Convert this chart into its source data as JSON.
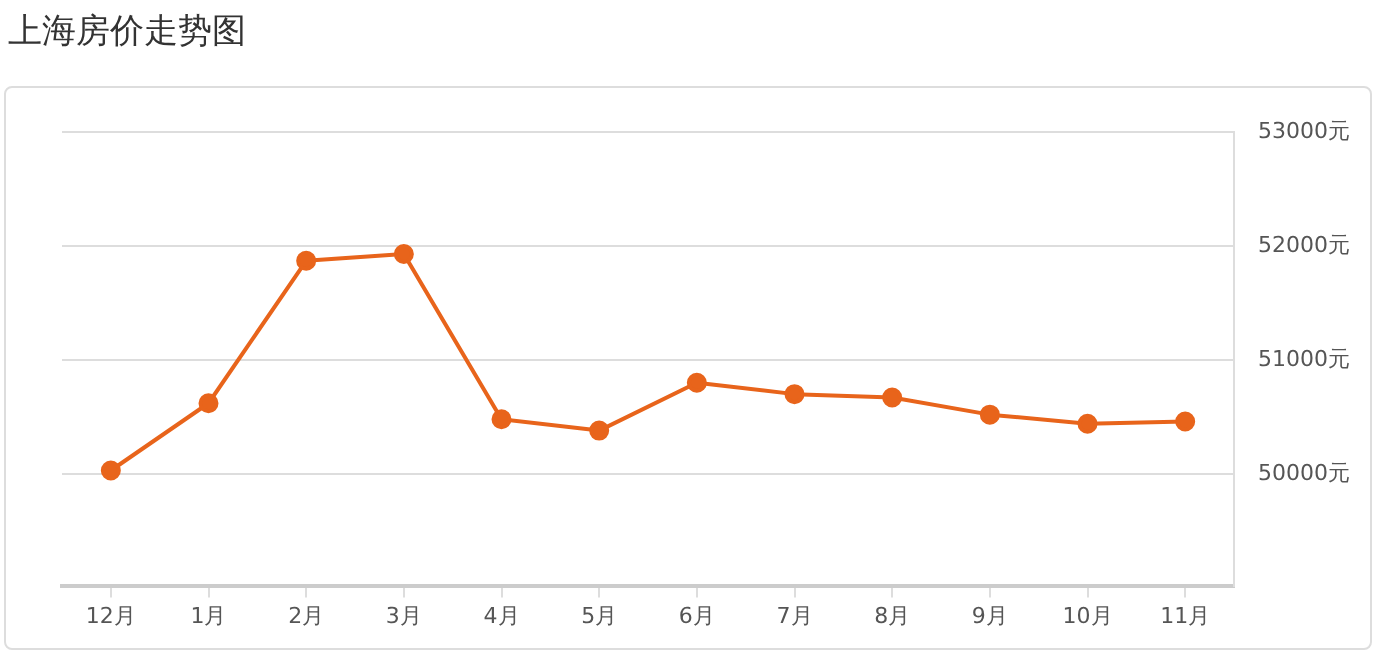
{
  "chart_data": {
    "type": "line",
    "title": "上海房价走势图",
    "categories": [
      "12月",
      "1月",
      "2月",
      "3月",
      "4月",
      "5月",
      "6月",
      "7月",
      "8月",
      "9月",
      "10月",
      "11月"
    ],
    "series": [
      {
        "color": "#e8641b",
        "values": [
          50030,
          50620,
          51870,
          51930,
          50480,
          50380,
          50800,
          50700,
          50670,
          50520,
          50440,
          50460
        ]
      }
    ],
    "ylim": [
      49020,
      53000
    ],
    "yticks": [
      {
        "value": 50000,
        "label": "50000元"
      },
      {
        "value": 51000,
        "label": "51000元"
      },
      {
        "value": 52000,
        "label": "52000元"
      },
      {
        "value": 53000,
        "label": "53000元"
      }
    ],
    "grid": "y",
    "legend": false,
    "marker": "circle",
    "line_style": "solid"
  }
}
